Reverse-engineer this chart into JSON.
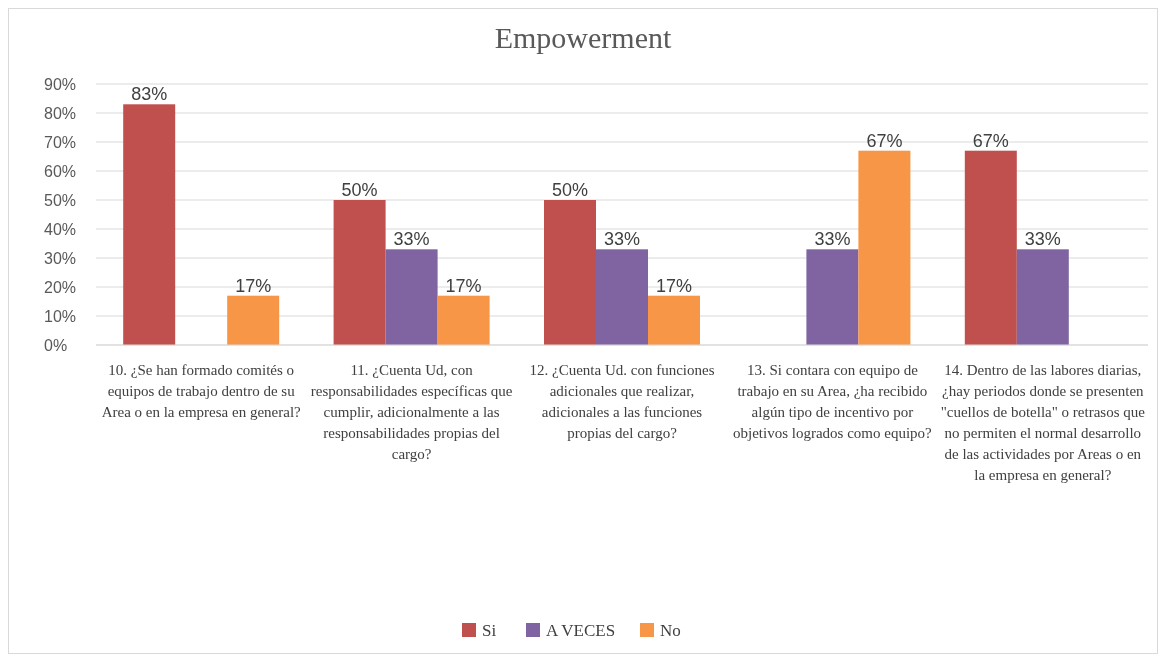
{
  "chart_data": {
    "type": "bar",
    "title": "Empowerment",
    "categories": [
      "10. ¿Se han formado comités o equipos de trabajo dentro de su Area o en la empresa en general?",
      "11. ¿Cuenta Ud, con responsabilidades específicas que cumplir, adicionalmente a las responsabilidades propias del cargo?",
      "12. ¿Cuenta Ud. con funciones adicionales que realizar, adicionales a las funciones propias del cargo?",
      "13. Si contara con equipo de trabajo en su Area, ¿ha recibido algún tipo de incentivo por objetivos logrados como equipo?",
      "14. Dentro de las labores diarias, ¿hay periodos donde se presenten \"cuellos de botella\" o retrasos que no permiten el normal desarrollo de las actividades por Areas o en la empresa en general?"
    ],
    "series": [
      {
        "name": "Si",
        "color": "#c0504d",
        "values": [
          83,
          50,
          50,
          null,
          67
        ],
        "value_labels": [
          "83%",
          "50%",
          "50%",
          null,
          "67%"
        ]
      },
      {
        "name": "A VECES",
        "color": "#8064a2",
        "values": [
          null,
          33,
          33,
          33,
          33
        ],
        "value_labels": [
          null,
          "33%",
          "33%",
          "33%",
          "33%"
        ]
      },
      {
        "name": "No",
        "color": "#f79646",
        "values": [
          17,
          17,
          17,
          67,
          null
        ],
        "value_labels": [
          "17%",
          "17%",
          "17%",
          "67%",
          null
        ]
      }
    ],
    "ylim": [
      0,
      90
    ],
    "yticks": [
      {
        "value": 0,
        "label": "0%"
      },
      {
        "value": 10,
        "label": "10%"
      },
      {
        "value": 20,
        "label": "20%"
      },
      {
        "value": 30,
        "label": "30%"
      },
      {
        "value": 40,
        "label": "40%"
      },
      {
        "value": 50,
        "label": "50%"
      },
      {
        "value": 60,
        "label": "60%"
      },
      {
        "value": 70,
        "label": "70%"
      },
      {
        "value": 80,
        "label": "80%"
      },
      {
        "value": 90,
        "label": "90%"
      }
    ],
    "grid": "y",
    "legend": "bottom"
  }
}
